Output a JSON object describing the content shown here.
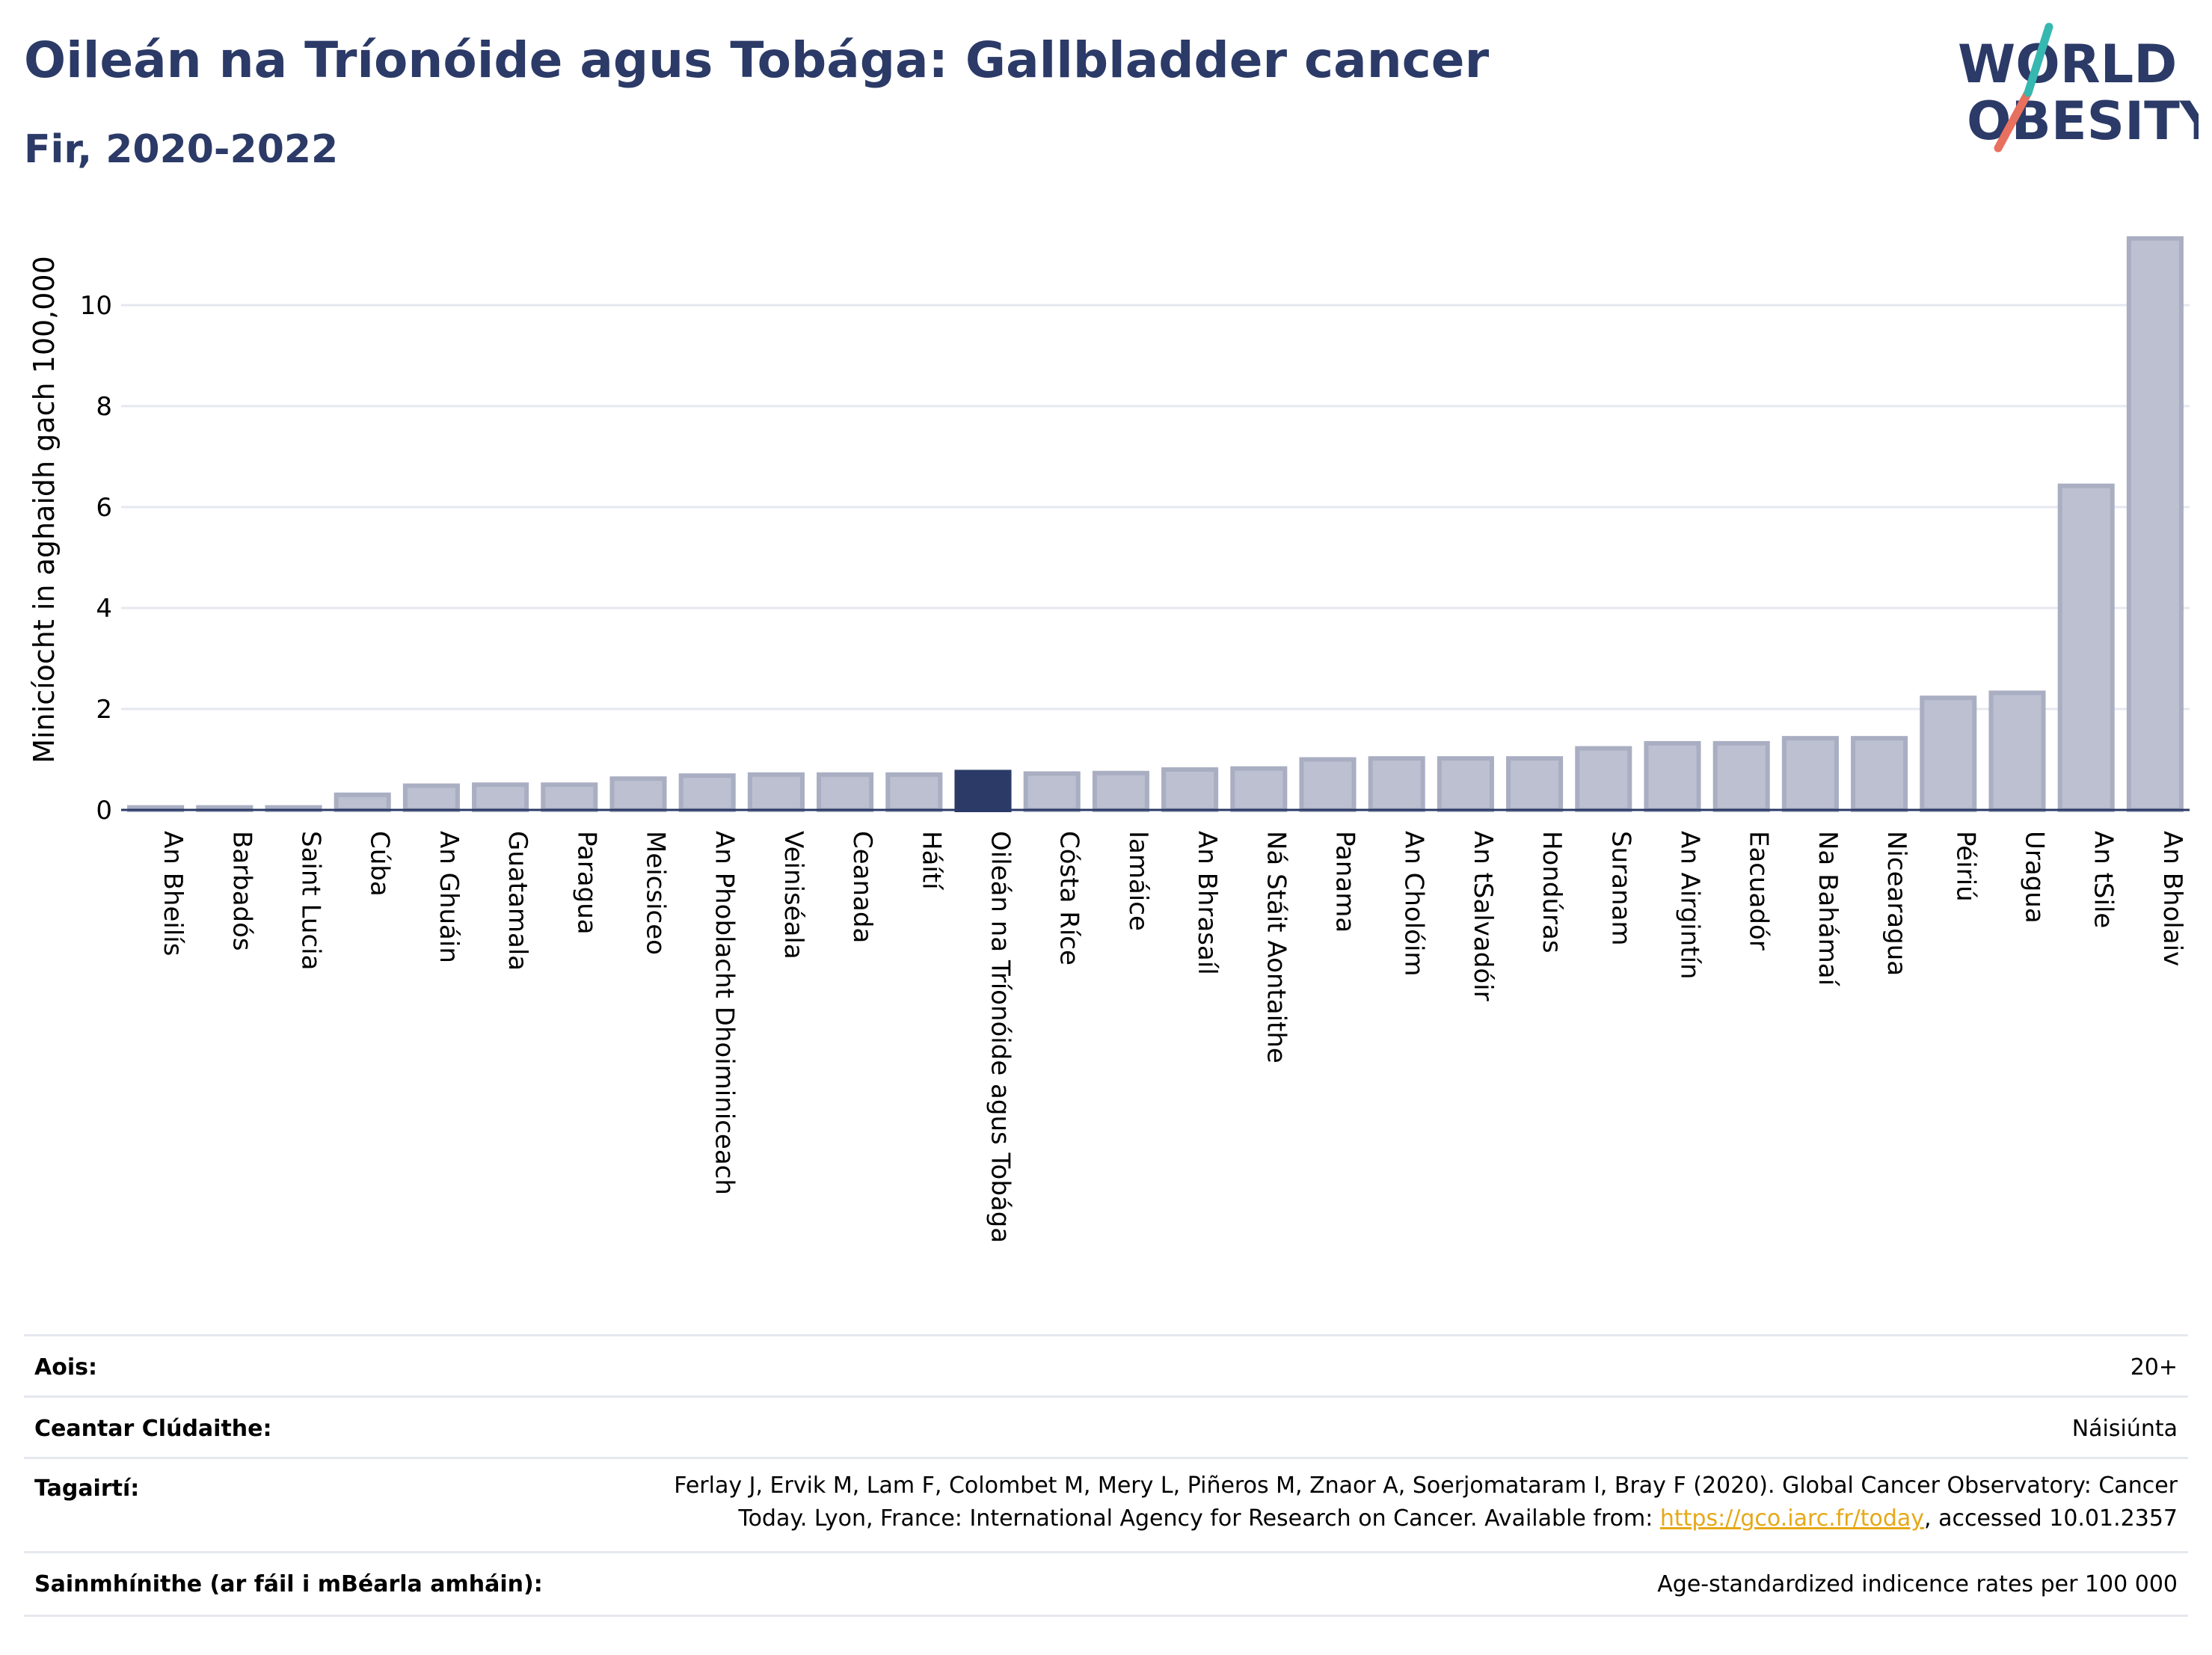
{
  "header": {
    "title": "Oileán na Tríonóide agus Tobága: Gallbladder cancer",
    "subtitle": "Fir, 2020-2022"
  },
  "logo": {
    "line1": "WORLD",
    "line2": "OBESITY"
  },
  "chart_data": {
    "type": "bar",
    "ylabel": "Minicíocht in aghaidh gach 100,000",
    "yticks": [
      0,
      2,
      4,
      6,
      8,
      10
    ],
    "ylim": [
      0,
      11.6
    ],
    "grid": true,
    "categories": [
      "An Bheilís",
      "Barbadós",
      "Saint Lucia",
      "Cúba",
      "An Ghuáin",
      "Guatamala",
      "Paragua",
      "Meicsiceo",
      "An Phoblacht Dhoiminiceach",
      "Veiniséala",
      "Ceanada",
      "Háítí",
      "Oileán na Tríonóide agus Tobága",
      "Cósta Ríce",
      "Iamáice",
      "An Bhrasaíl",
      "Ná Stáit Aontaithe",
      "Panama",
      "An Cholóim",
      "An tSalvadóir",
      "Hondúras",
      "Suranam",
      "An Airgintín",
      "Eacuadór",
      "Na Bahámaí",
      "Nicearagua",
      "Péiriú",
      "Uragua",
      "An tSile",
      "An Bholaiv"
    ],
    "values": [
      0.05,
      0.05,
      0.05,
      0.3,
      0.48,
      0.5,
      0.5,
      0.62,
      0.68,
      0.7,
      0.7,
      0.7,
      0.75,
      0.72,
      0.73,
      0.8,
      0.82,
      1.0,
      1.02,
      1.02,
      1.02,
      1.22,
      1.32,
      1.32,
      1.42,
      1.42,
      2.22,
      2.32,
      6.42,
      11.32
    ],
    "highlight": "Oileán na Tríonóide agus Tobága",
    "colors": {
      "bar": "#bcc0d0",
      "bar_edge": "#a9aec2",
      "highlight": "#2b3a67",
      "grid": "#e6e8ef",
      "axis": "#2b3a67"
    }
  },
  "info": {
    "age_label": "Aois:",
    "age_value": "20+",
    "area_label": "Ceantar Clúdaithe:",
    "area_value": "Náisiúnta",
    "ref_label": "Tagairtí:",
    "ref_text_1": "Ferlay J, Ervik M, Lam F, Colombet M, Mery L, Piñeros M, Znaor A, Soerjomataram I, Bray F (2020). Global Cancer Observatory: Cancer Today. Lyon, France: International Agency for Research on Cancer. Available from: ",
    "ref_link": "https://gco.iarc.fr/today",
    "ref_text_2": ", accessed 10.01.2357",
    "def_label": "Sainmhínithe (ar fáil i mBéarla amháin):",
    "def_value": "Age-standardized indicence rates per 100 000"
  }
}
